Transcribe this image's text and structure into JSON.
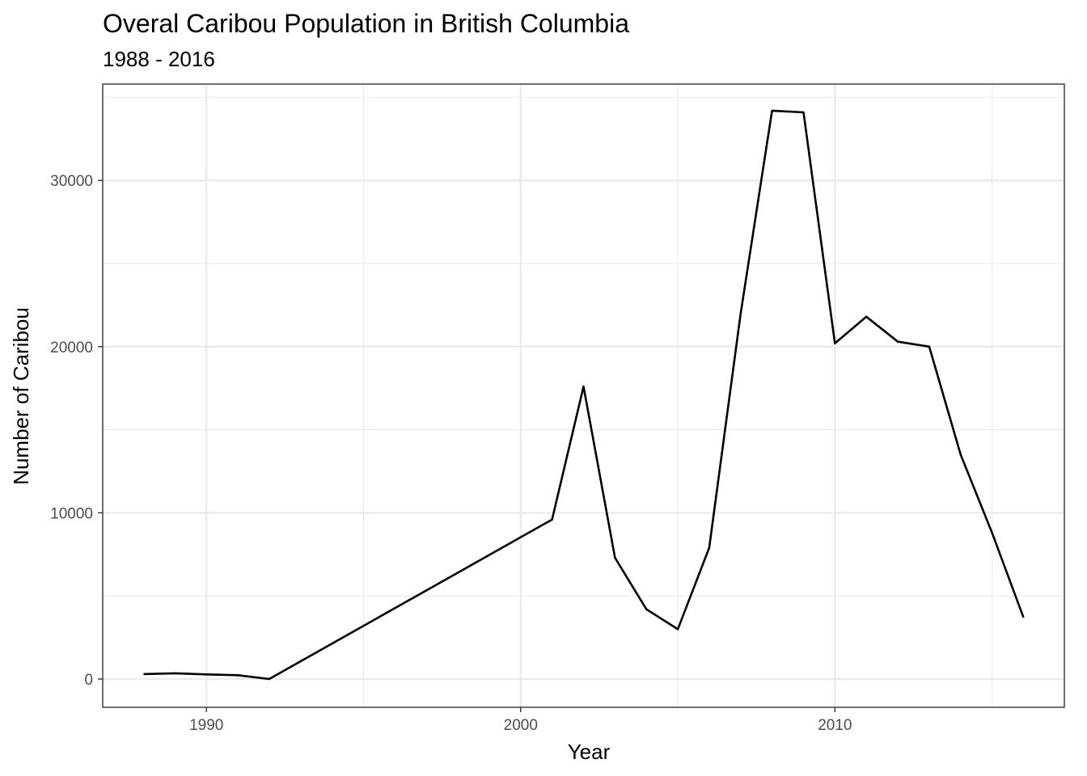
{
  "chart_data": {
    "type": "line",
    "title": "Overal Caribou Population in British Columbia",
    "subtitle": "1988 - 2016",
    "xlabel": "Year",
    "ylabel": "Number of Caribou",
    "xlim": [
      1986.7,
      2017.3
    ],
    "ylim": [
      -1700,
      35800
    ],
    "x_ticks": [
      1990,
      2000,
      2010
    ],
    "x_tick_labels": [
      "1990",
      "2000",
      "2010"
    ],
    "x_minor_ticks": [
      1995,
      2005,
      2015
    ],
    "y_ticks": [
      0,
      10000,
      20000,
      30000
    ],
    "y_tick_labels": [
      "0",
      "10000",
      "20000",
      "30000"
    ],
    "y_minor_ticks": [
      5000,
      15000,
      25000,
      35000
    ],
    "grid": true,
    "series": [
      {
        "color": "#000000",
        "x": [
          1988,
          1989,
          1990,
          1991,
          1992,
          2001,
          2002,
          2003,
          2004,
          2005,
          2006,
          2007,
          2008,
          2009,
          2010,
          2011,
          2012,
          2013,
          2014,
          2015,
          2016
        ],
        "values": [
          300,
          350,
          280,
          230,
          0,
          9600,
          17600,
          7300,
          4200,
          3000,
          7900,
          22000,
          34200,
          34100,
          20200,
          21800,
          20300,
          20000,
          13500,
          8800,
          3700
        ]
      }
    ]
  }
}
